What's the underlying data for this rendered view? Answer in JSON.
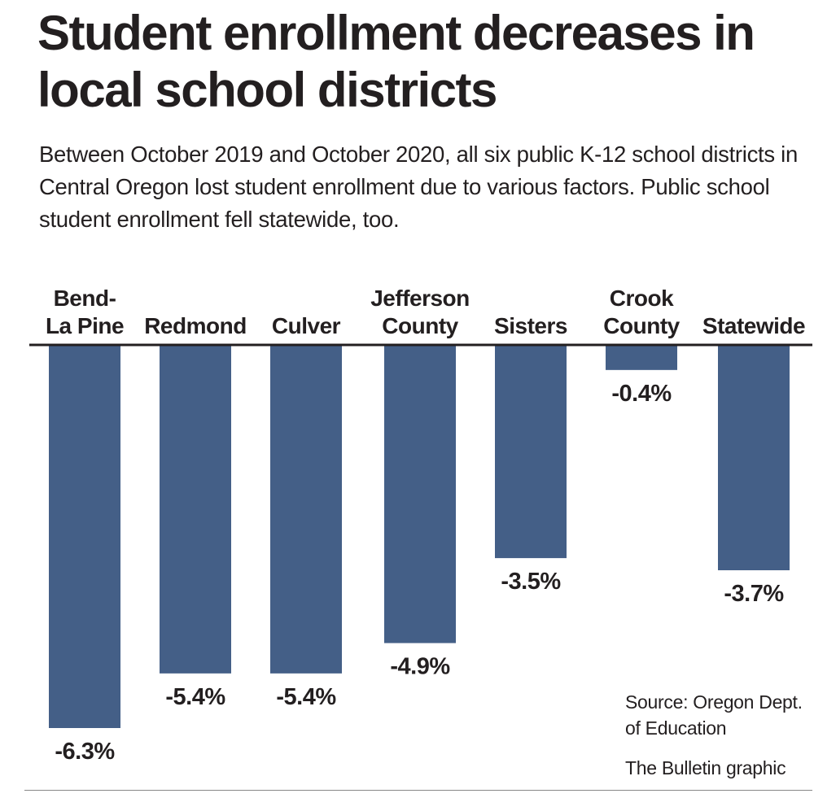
{
  "chart_data": {
    "type": "bar",
    "title": "Student enrollment decreases in local school districts",
    "subtitle": "Between October 2019 and October 2020, all six public K-12 school districts in Central Oregon lost student enrollment due to various factors. Public school student enrollment fell statewide, too.",
    "categories": [
      [
        "Bend-",
        "La Pine"
      ],
      [
        "Redmond"
      ],
      [
        "Culver"
      ],
      [
        "Jefferson",
        "County"
      ],
      [
        "Sisters"
      ],
      [
        "Crook",
        "County"
      ],
      [
        "Statewide"
      ]
    ],
    "values": [
      -6.3,
      -5.4,
      -5.4,
      -4.9,
      -3.5,
      -0.4,
      -3.7
    ],
    "value_labels": [
      "-6.3%",
      "-5.4%",
      "-5.4%",
      "-4.9%",
      "-3.5%",
      "-0.4%",
      "-3.7%"
    ],
    "unit": "%",
    "ylim": [
      -6.3,
      0
    ],
    "bar_color": "#445f87",
    "grid": false,
    "source": "Source: Oregon Dept. of Education",
    "credit": "The Bulletin graphic"
  }
}
